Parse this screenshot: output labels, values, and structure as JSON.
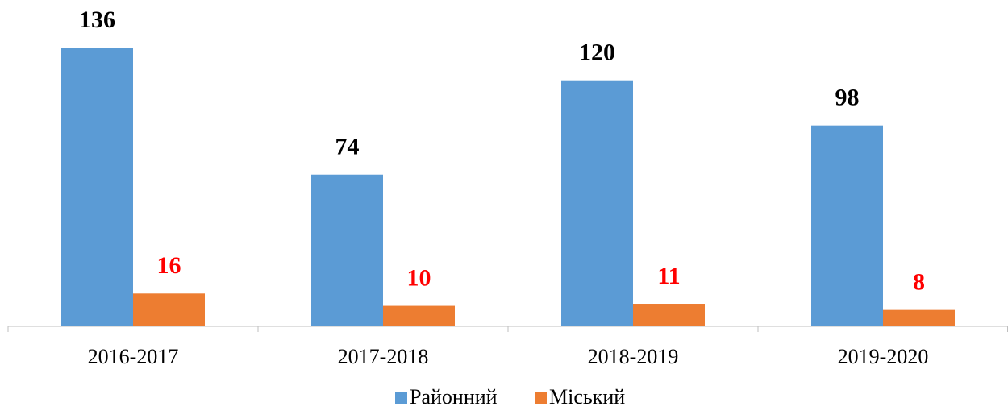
{
  "chart_data": {
    "type": "bar",
    "categories": [
      "2016-2017",
      "2017-2018",
      "2018-2019",
      "2019-2020"
    ],
    "series": [
      {
        "name": "Районний",
        "color": "#5b9bd5",
        "label_color": "#000000",
        "values": [
          136,
          74,
          120,
          98
        ]
      },
      {
        "name": "Міський",
        "color": "#ed7d31",
        "label_color": "#ff0000",
        "values": [
          16,
          10,
          11,
          8
        ]
      }
    ],
    "legend": "bottom",
    "grid": false
  }
}
